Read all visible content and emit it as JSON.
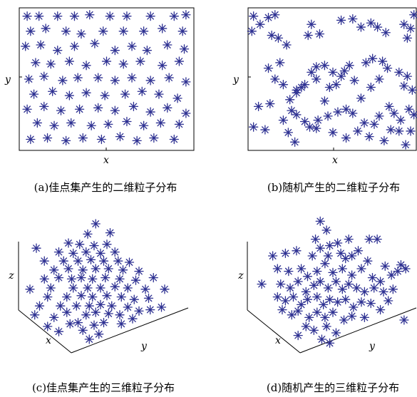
{
  "chart_data": [
    {
      "type": "scatter",
      "caption": "(a)佳点集产生的二维粒子分布",
      "xlabel": "x",
      "ylabel": "y",
      "marker": "asterisk",
      "marker_color": "#2e3192",
      "xlim": [
        0,
        1
      ],
      "ylim": [
        0,
        1
      ],
      "points": [
        [
          0.03,
          0.96
        ],
        [
          0.1,
          0.96
        ],
        [
          0.21,
          0.96
        ],
        [
          0.31,
          0.96
        ],
        [
          0.4,
          0.97
        ],
        [
          0.52,
          0.96
        ],
        [
          0.62,
          0.96
        ],
        [
          0.76,
          0.96
        ],
        [
          0.9,
          0.96
        ],
        [
          0.97,
          0.97
        ],
        [
          0.05,
          0.85
        ],
        [
          0.14,
          0.87
        ],
        [
          0.26,
          0.85
        ],
        [
          0.35,
          0.83
        ],
        [
          0.48,
          0.85
        ],
        [
          0.6,
          0.85
        ],
        [
          0.72,
          0.85
        ],
        [
          0.83,
          0.87
        ],
        [
          0.95,
          0.85
        ],
        [
          0.02,
          0.74
        ],
        [
          0.11,
          0.75
        ],
        [
          0.21,
          0.71
        ],
        [
          0.31,
          0.74
        ],
        [
          0.43,
          0.76
        ],
        [
          0.55,
          0.71
        ],
        [
          0.65,
          0.74
        ],
        [
          0.74,
          0.71
        ],
        [
          0.86,
          0.75
        ],
        [
          0.96,
          0.72
        ],
        [
          0.08,
          0.62
        ],
        [
          0.17,
          0.61
        ],
        [
          0.28,
          0.63
        ],
        [
          0.38,
          0.6
        ],
        [
          0.5,
          0.63
        ],
        [
          0.6,
          0.61
        ],
        [
          0.7,
          0.63
        ],
        [
          0.83,
          0.6
        ],
        [
          0.93,
          0.63
        ],
        [
          0.04,
          0.5
        ],
        [
          0.13,
          0.52
        ],
        [
          0.24,
          0.49
        ],
        [
          0.33,
          0.51
        ],
        [
          0.45,
          0.51
        ],
        [
          0.55,
          0.49
        ],
        [
          0.65,
          0.51
        ],
        [
          0.76,
          0.49
        ],
        [
          0.87,
          0.51
        ],
        [
          0.97,
          0.48
        ],
        [
          0.07,
          0.39
        ],
        [
          0.18,
          0.41
        ],
        [
          0.28,
          0.38
        ],
        [
          0.38,
          0.4
        ],
        [
          0.49,
          0.38
        ],
        [
          0.61,
          0.39
        ],
        [
          0.71,
          0.41
        ],
        [
          0.81,
          0.39
        ],
        [
          0.92,
          0.36
        ],
        [
          0.03,
          0.28
        ],
        [
          0.13,
          0.3
        ],
        [
          0.23,
          0.27
        ],
        [
          0.34,
          0.28
        ],
        [
          0.45,
          0.29
        ],
        [
          0.55,
          0.27
        ],
        [
          0.66,
          0.3
        ],
        [
          0.76,
          0.26
        ],
        [
          0.86,
          0.29
        ],
        [
          0.97,
          0.25
        ],
        [
          0.09,
          0.18
        ],
        [
          0.19,
          0.16
        ],
        [
          0.29,
          0.18
        ],
        [
          0.41,
          0.16
        ],
        [
          0.51,
          0.17
        ],
        [
          0.62,
          0.19
        ],
        [
          0.72,
          0.16
        ],
        [
          0.82,
          0.18
        ],
        [
          0.93,
          0.17
        ],
        [
          0.05,
          0.06
        ],
        [
          0.15,
          0.07
        ],
        [
          0.26,
          0.05
        ],
        [
          0.36,
          0.07
        ],
        [
          0.47,
          0.06
        ],
        [
          0.58,
          0.08
        ],
        [
          0.68,
          0.05
        ],
        [
          0.78,
          0.07
        ],
        [
          0.9,
          0.06
        ]
      ]
    },
    {
      "type": "scatter",
      "caption": "(b)随机产生的二维粒子分布",
      "xlabel": "x",
      "ylabel": "y",
      "marker": "asterisk",
      "marker_color": "#2e3192",
      "xlim": [
        0,
        1
      ],
      "ylim": [
        0,
        1
      ],
      "points": [
        [
          0.02,
          0.96
        ],
        [
          0.06,
          0.9
        ],
        [
          0.11,
          0.95
        ],
        [
          0.15,
          0.97
        ],
        [
          0.01,
          0.85
        ],
        [
          0.13,
          0.82
        ],
        [
          0.17,
          0.8
        ],
        [
          0.22,
          0.75
        ],
        [
          0.35,
          0.82
        ],
        [
          0.37,
          0.9
        ],
        [
          0.42,
          0.83
        ],
        [
          0.55,
          0.93
        ],
        [
          0.62,
          0.94
        ],
        [
          0.67,
          0.88
        ],
        [
          0.73,
          0.91
        ],
        [
          0.77,
          0.88
        ],
        [
          0.82,
          0.84
        ],
        [
          0.93,
          0.9
        ],
        [
          0.97,
          0.87
        ],
        [
          0.99,
          0.97
        ],
        [
          0.95,
          0.8
        ],
        [
          0.18,
          0.62
        ],
        [
          0.11,
          0.58
        ],
        [
          0.15,
          0.5
        ],
        [
          0.2,
          0.46
        ],
        [
          0.28,
          0.42
        ],
        [
          0.33,
          0.46
        ],
        [
          0.37,
          0.55
        ],
        [
          0.4,
          0.59
        ],
        [
          0.45,
          0.6
        ],
        [
          0.5,
          0.55
        ],
        [
          0.55,
          0.52
        ],
        [
          0.57,
          0.56
        ],
        [
          0.6,
          0.6
        ],
        [
          0.63,
          0.49
        ],
        [
          0.52,
          0.46
        ],
        [
          0.48,
          0.44
        ],
        [
          0.45,
          0.34
        ],
        [
          0.28,
          0.4
        ],
        [
          0.31,
          0.44
        ],
        [
          0.24,
          0.35
        ],
        [
          0.4,
          0.5
        ],
        [
          0.7,
          0.62
        ],
        [
          0.74,
          0.65
        ],
        [
          0.8,
          0.63
        ],
        [
          0.83,
          0.58
        ],
        [
          0.78,
          0.5
        ],
        [
          0.73,
          0.44
        ],
        [
          0.67,
          0.36
        ],
        [
          0.9,
          0.55
        ],
        [
          0.95,
          0.52
        ],
        [
          0.93,
          0.45
        ],
        [
          0.98,
          0.42
        ],
        [
          0.05,
          0.3
        ],
        [
          0.12,
          0.32
        ],
        [
          0.25,
          0.27
        ],
        [
          0.28,
          0.24
        ],
        [
          0.2,
          0.2
        ],
        [
          0.33,
          0.19
        ],
        [
          0.36,
          0.15
        ],
        [
          0.41,
          0.2
        ],
        [
          0.47,
          0.23
        ],
        [
          0.53,
          0.26
        ],
        [
          0.58,
          0.28
        ],
        [
          0.62,
          0.25
        ],
        [
          0.69,
          0.18
        ],
        [
          0.75,
          0.17
        ],
        [
          0.78,
          0.23
        ],
        [
          0.84,
          0.3
        ],
        [
          0.87,
          0.25
        ],
        [
          0.91,
          0.2
        ],
        [
          0.96,
          0.28
        ],
        [
          0.99,
          0.24
        ],
        [
          0.97,
          0.12
        ],
        [
          0.02,
          0.15
        ],
        [
          0.09,
          0.13
        ],
        [
          0.23,
          0.11
        ],
        [
          0.27,
          0.04
        ],
        [
          0.4,
          0.14
        ],
        [
          0.5,
          0.11
        ],
        [
          0.58,
          0.07
        ],
        [
          0.65,
          0.12
        ],
        [
          0.72,
          0.08
        ],
        [
          0.81,
          0.05
        ],
        [
          0.85,
          0.13
        ],
        [
          0.9,
          0.12
        ],
        [
          0.94,
          0.02
        ]
      ]
    },
    {
      "type": "scatter",
      "caption": "(c)佳点集产生的三维粒子分布",
      "xlabel": "x",
      "ylabel": "y",
      "zlabel": "z",
      "marker": "asterisk",
      "marker_color": "#2e3192",
      "projection": "3d",
      "points": [
        [
          0.41,
          0.05
        ],
        [
          0.47,
          0.09
        ],
        [
          0.37,
          0.12
        ],
        [
          0.22,
          0.11
        ],
        [
          0.15,
          0.15
        ],
        [
          0.29,
          0.17
        ],
        [
          0.34,
          0.18
        ],
        [
          0.44,
          0.16
        ],
        [
          0.5,
          0.18
        ],
        [
          0.61,
          0.17
        ],
        [
          0.07,
          0.24
        ],
        [
          0.19,
          0.22
        ],
        [
          0.27,
          0.26
        ],
        [
          0.39,
          0.24
        ],
        [
          0.45,
          0.26
        ],
        [
          0.53,
          0.25
        ],
        [
          0.6,
          0.24
        ],
        [
          0.68,
          0.21
        ],
        [
          0.1,
          0.31
        ],
        [
          0.23,
          0.31
        ],
        [
          0.33,
          0.31
        ],
        [
          0.41,
          0.31
        ],
        [
          0.48,
          0.32
        ],
        [
          0.55,
          0.31
        ],
        [
          0.65,
          0.3
        ],
        [
          0.72,
          0.27
        ],
        [
          0.79,
          0.28
        ],
        [
          0.86,
          0.3
        ],
        [
          0.15,
          0.38
        ],
        [
          0.27,
          0.38
        ],
        [
          0.36,
          0.39
        ],
        [
          0.43,
          0.38
        ],
        [
          0.52,
          0.39
        ],
        [
          0.61,
          0.38
        ],
        [
          0.69,
          0.36
        ],
        [
          0.78,
          0.37
        ],
        [
          0.04,
          0.44
        ],
        [
          0.17,
          0.45
        ],
        [
          0.31,
          0.45
        ],
        [
          0.4,
          0.45
        ],
        [
          0.48,
          0.45
        ],
        [
          0.57,
          0.46
        ],
        [
          0.65,
          0.45
        ],
        [
          0.76,
          0.44
        ],
        [
          0.88,
          0.44
        ],
        [
          0.13,
          0.52
        ],
        [
          0.22,
          0.53
        ],
        [
          0.3,
          0.52
        ],
        [
          0.36,
          0.53
        ],
        [
          0.43,
          0.52
        ],
        [
          0.51,
          0.53
        ],
        [
          0.6,
          0.52
        ],
        [
          0.7,
          0.51
        ],
        [
          0.81,
          0.53
        ],
        [
          0.19,
          0.59
        ],
        [
          0.28,
          0.6
        ],
        [
          0.37,
          0.59
        ],
        [
          0.45,
          0.6
        ],
        [
          0.53,
          0.6
        ],
        [
          0.62,
          0.59
        ],
        [
          0.72,
          0.58
        ],
        [
          0.13,
          0.66
        ],
        [
          0.25,
          0.66
        ],
        [
          0.34,
          0.66
        ],
        [
          0.42,
          0.67
        ],
        [
          0.5,
          0.66
        ],
        [
          0.59,
          0.66
        ],
        [
          0.66,
          0.65
        ],
        [
          0.22,
          0.73
        ],
        [
          0.31,
          0.72
        ],
        [
          0.39,
          0.73
        ],
        [
          0.48,
          0.72
        ],
        [
          0.57,
          0.73
        ],
        [
          0.08,
          0.76
        ],
        [
          0.28,
          0.8
        ],
        [
          0.35,
          0.79
        ],
        [
          0.44,
          0.78
        ],
        [
          0.52,
          0.79
        ],
        [
          0.4,
          0.87
        ],
        [
          0.54,
          0.88
        ],
        [
          0.45,
          0.95
        ]
      ]
    },
    {
      "type": "scatter",
      "caption": "(d)随机产生的三维粒子分布",
      "xlabel": "x",
      "ylabel": "y",
      "zlabel": "z",
      "marker": "asterisk",
      "marker_color": "#2e3192",
      "projection": "3d",
      "points": [
        [
          0.42,
          0.97
        ],
        [
          0.46,
          0.9
        ],
        [
          0.39,
          0.83
        ],
        [
          0.42,
          0.76
        ],
        [
          0.48,
          0.78
        ],
        [
          0.53,
          0.8
        ],
        [
          0.6,
          0.83
        ],
        [
          0.73,
          0.83
        ],
        [
          0.78,
          0.83
        ],
        [
          0.12,
          0.7
        ],
        [
          0.2,
          0.72
        ],
        [
          0.27,
          0.74
        ],
        [
          0.37,
          0.7
        ],
        [
          0.47,
          0.7
        ],
        [
          0.55,
          0.72
        ],
        [
          0.58,
          0.68
        ],
        [
          0.62,
          0.7
        ],
        [
          0.66,
          0.74
        ],
        [
          0.72,
          0.66
        ],
        [
          0.83,
          0.62
        ],
        [
          0.93,
          0.63
        ],
        [
          0.15,
          0.6
        ],
        [
          0.22,
          0.58
        ],
        [
          0.3,
          0.6
        ],
        [
          0.34,
          0.54
        ],
        [
          0.4,
          0.58
        ],
        [
          0.45,
          0.64
        ],
        [
          0.5,
          0.57
        ],
        [
          0.56,
          0.6
        ],
        [
          0.62,
          0.55
        ],
        [
          0.68,
          0.6
        ],
        [
          0.75,
          0.53
        ],
        [
          0.8,
          0.5
        ],
        [
          0.87,
          0.55
        ],
        [
          0.91,
          0.58
        ],
        [
          0.96,
          0.6
        ],
        [
          0.05,
          0.48
        ],
        [
          0.17,
          0.48
        ],
        [
          0.23,
          0.45
        ],
        [
          0.28,
          0.5
        ],
        [
          0.33,
          0.42
        ],
        [
          0.38,
          0.47
        ],
        [
          0.42,
          0.5
        ],
        [
          0.47,
          0.45
        ],
        [
          0.52,
          0.5
        ],
        [
          0.56,
          0.44
        ],
        [
          0.6,
          0.48
        ],
        [
          0.65,
          0.45
        ],
        [
          0.7,
          0.42
        ],
        [
          0.76,
          0.45
        ],
        [
          0.82,
          0.42
        ],
        [
          0.88,
          0.44
        ],
        [
          0.15,
          0.38
        ],
        [
          0.2,
          0.35
        ],
        [
          0.25,
          0.38
        ],
        [
          0.3,
          0.32
        ],
        [
          0.34,
          0.36
        ],
        [
          0.4,
          0.38
        ],
        [
          0.44,
          0.32
        ],
        [
          0.48,
          0.36
        ],
        [
          0.53,
          0.34
        ],
        [
          0.58,
          0.36
        ],
        [
          0.63,
          0.3
        ],
        [
          0.68,
          0.34
        ],
        [
          0.74,
          0.33
        ],
        [
          0.8,
          0.28
        ],
        [
          0.85,
          0.35
        ],
        [
          0.18,
          0.28
        ],
        [
          0.24,
          0.24
        ],
        [
          0.28,
          0.27
        ],
        [
          0.35,
          0.22
        ],
        [
          0.4,
          0.26
        ],
        [
          0.45,
          0.22
        ],
        [
          0.5,
          0.26
        ],
        [
          0.57,
          0.2
        ],
        [
          0.62,
          0.23
        ],
        [
          0.7,
          0.22
        ],
        [
          0.95,
          0.2
        ],
        [
          0.33,
          0.15
        ],
        [
          0.38,
          0.12
        ],
        [
          0.46,
          0.15
        ],
        [
          0.52,
          0.1
        ],
        [
          0.28,
          0.08
        ],
        [
          0.43,
          0.05
        ],
        [
          0.48,
          0.02
        ]
      ]
    }
  ]
}
